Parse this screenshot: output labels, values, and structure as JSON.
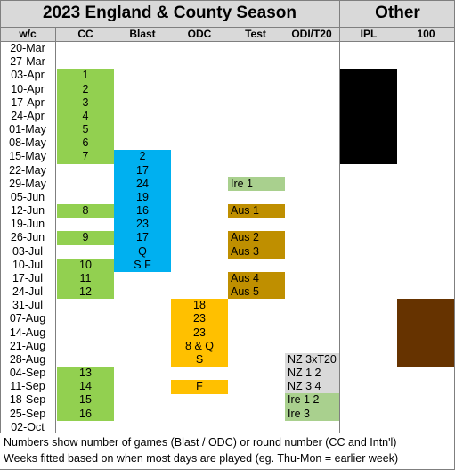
{
  "headers": {
    "main_title": "2023 England & County Season",
    "other_title": "Other",
    "columns": [
      "w/c",
      "CC",
      "Blast",
      "ODC",
      "Test",
      "ODI/T20",
      "IPL",
      "100"
    ]
  },
  "weeks": [
    "20-Mar",
    "27-Mar",
    "03-Apr",
    "10-Apr",
    "17-Apr",
    "24-Apr",
    "01-May",
    "08-May",
    "15-May",
    "22-May",
    "29-May",
    "05-Jun",
    "12-Jun",
    "19-Jun",
    "26-Jun",
    "03-Jul",
    "10-Jul",
    "17-Jul",
    "24-Jul",
    "31-Jul",
    "07-Aug",
    "14-Aug",
    "21-Aug",
    "28-Aug",
    "04-Sep",
    "11-Sep",
    "18-Sep",
    "25-Sep",
    "02-Oct"
  ],
  "cc": [
    "",
    "",
    "1",
    "2",
    "3",
    "4",
    "5",
    "6",
    "7",
    "",
    "",
    "",
    "8",
    "",
    "9",
    "",
    "10",
    "11",
    "12",
    "",
    "",
    "",
    "",
    "",
    "13",
    "14",
    "15",
    "16",
    ""
  ],
  "blast": [
    "",
    "",
    "",
    "",
    "",
    "",
    "",
    "",
    "2",
    "17",
    "24",
    "19",
    "16",
    "23",
    "17",
    "Q",
    "S F",
    "",
    "",
    "",
    "",
    "",
    "",
    "",
    "",
    "",
    "",
    "",
    ""
  ],
  "odc": [
    "",
    "",
    "",
    "",
    "",
    "",
    "",
    "",
    "",
    "",
    "",
    "",
    "",
    "",
    "",
    "",
    "",
    "",
    "",
    "18",
    "23",
    "23",
    "8 & Q",
    "S",
    "",
    "F",
    "",
    "",
    ""
  ],
  "test": [
    "",
    "",
    "",
    "",
    "",
    "",
    "",
    "",
    "",
    "",
    "Ire 1",
    "",
    "Aus 1",
    "",
    "Aus 2",
    "Aus 3",
    "",
    "Aus 4",
    "Aus 5",
    "",
    "",
    "",
    "",
    "",
    "",
    "",
    "",
    "",
    ""
  ],
  "odi": [
    "",
    "",
    "",
    "",
    "",
    "",
    "",
    "",
    "",
    "",
    "",
    "",
    "",
    "",
    "",
    "",
    "",
    "",
    "",
    "",
    "",
    "",
    "",
    "NZ 3xT20",
    "NZ 1 2",
    "NZ 3 4",
    "Ire 1 2",
    "Ire 3",
    ""
  ],
  "ipl_weeks": [
    2,
    3,
    4,
    5,
    6,
    7,
    8
  ],
  "hundred_weeks": [
    19,
    20,
    21,
    22,
    23
  ],
  "colors": {
    "cc": "#92d050",
    "blast": "#00b0f0",
    "odc": "#ffc000",
    "test_ire": "#a9d08e",
    "test_aus": "#bf8f00",
    "odi_nz": "#d9d9d9",
    "odi_ire": "#a9d08e",
    "ipl": "#000000",
    "hundred": "#663300",
    "header_bg": "#d9d9d9"
  },
  "footer": [
    "Numbers show number of games (Blast / ODC) or round number (CC and Intn'l)",
    "Weeks fitted based on when most days are played (eg. Thu-Mon = earlier week)"
  ]
}
